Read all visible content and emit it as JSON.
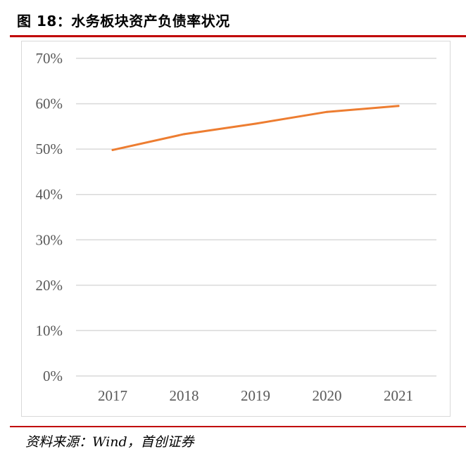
{
  "figure": {
    "title": "图 18：水务板块资产负债率状况",
    "source": "资料来源：Wind，首创证券"
  },
  "colors": {
    "accent_rule": "#c00000",
    "line": "#ed7d31",
    "grid": "#d9d9d9",
    "tick_text": "#595959"
  },
  "chart_data": {
    "type": "line",
    "title": "",
    "xlabel": "",
    "ylabel": "",
    "categories": [
      "2017",
      "2018",
      "2019",
      "2020",
      "2021"
    ],
    "series": [
      {
        "values": [
          49.8,
          53.3,
          55.6,
          58.2,
          59.5
        ],
        "color": "#ed7d31"
      }
    ],
    "ylim": [
      0,
      70
    ],
    "yticks": [
      0,
      10,
      20,
      30,
      40,
      50,
      60,
      70
    ],
    "ytick_labels": [
      "0%",
      "10%",
      "20%",
      "30%",
      "40%",
      "50%",
      "60%",
      "70%"
    ],
    "grid": true,
    "legend": "none"
  }
}
